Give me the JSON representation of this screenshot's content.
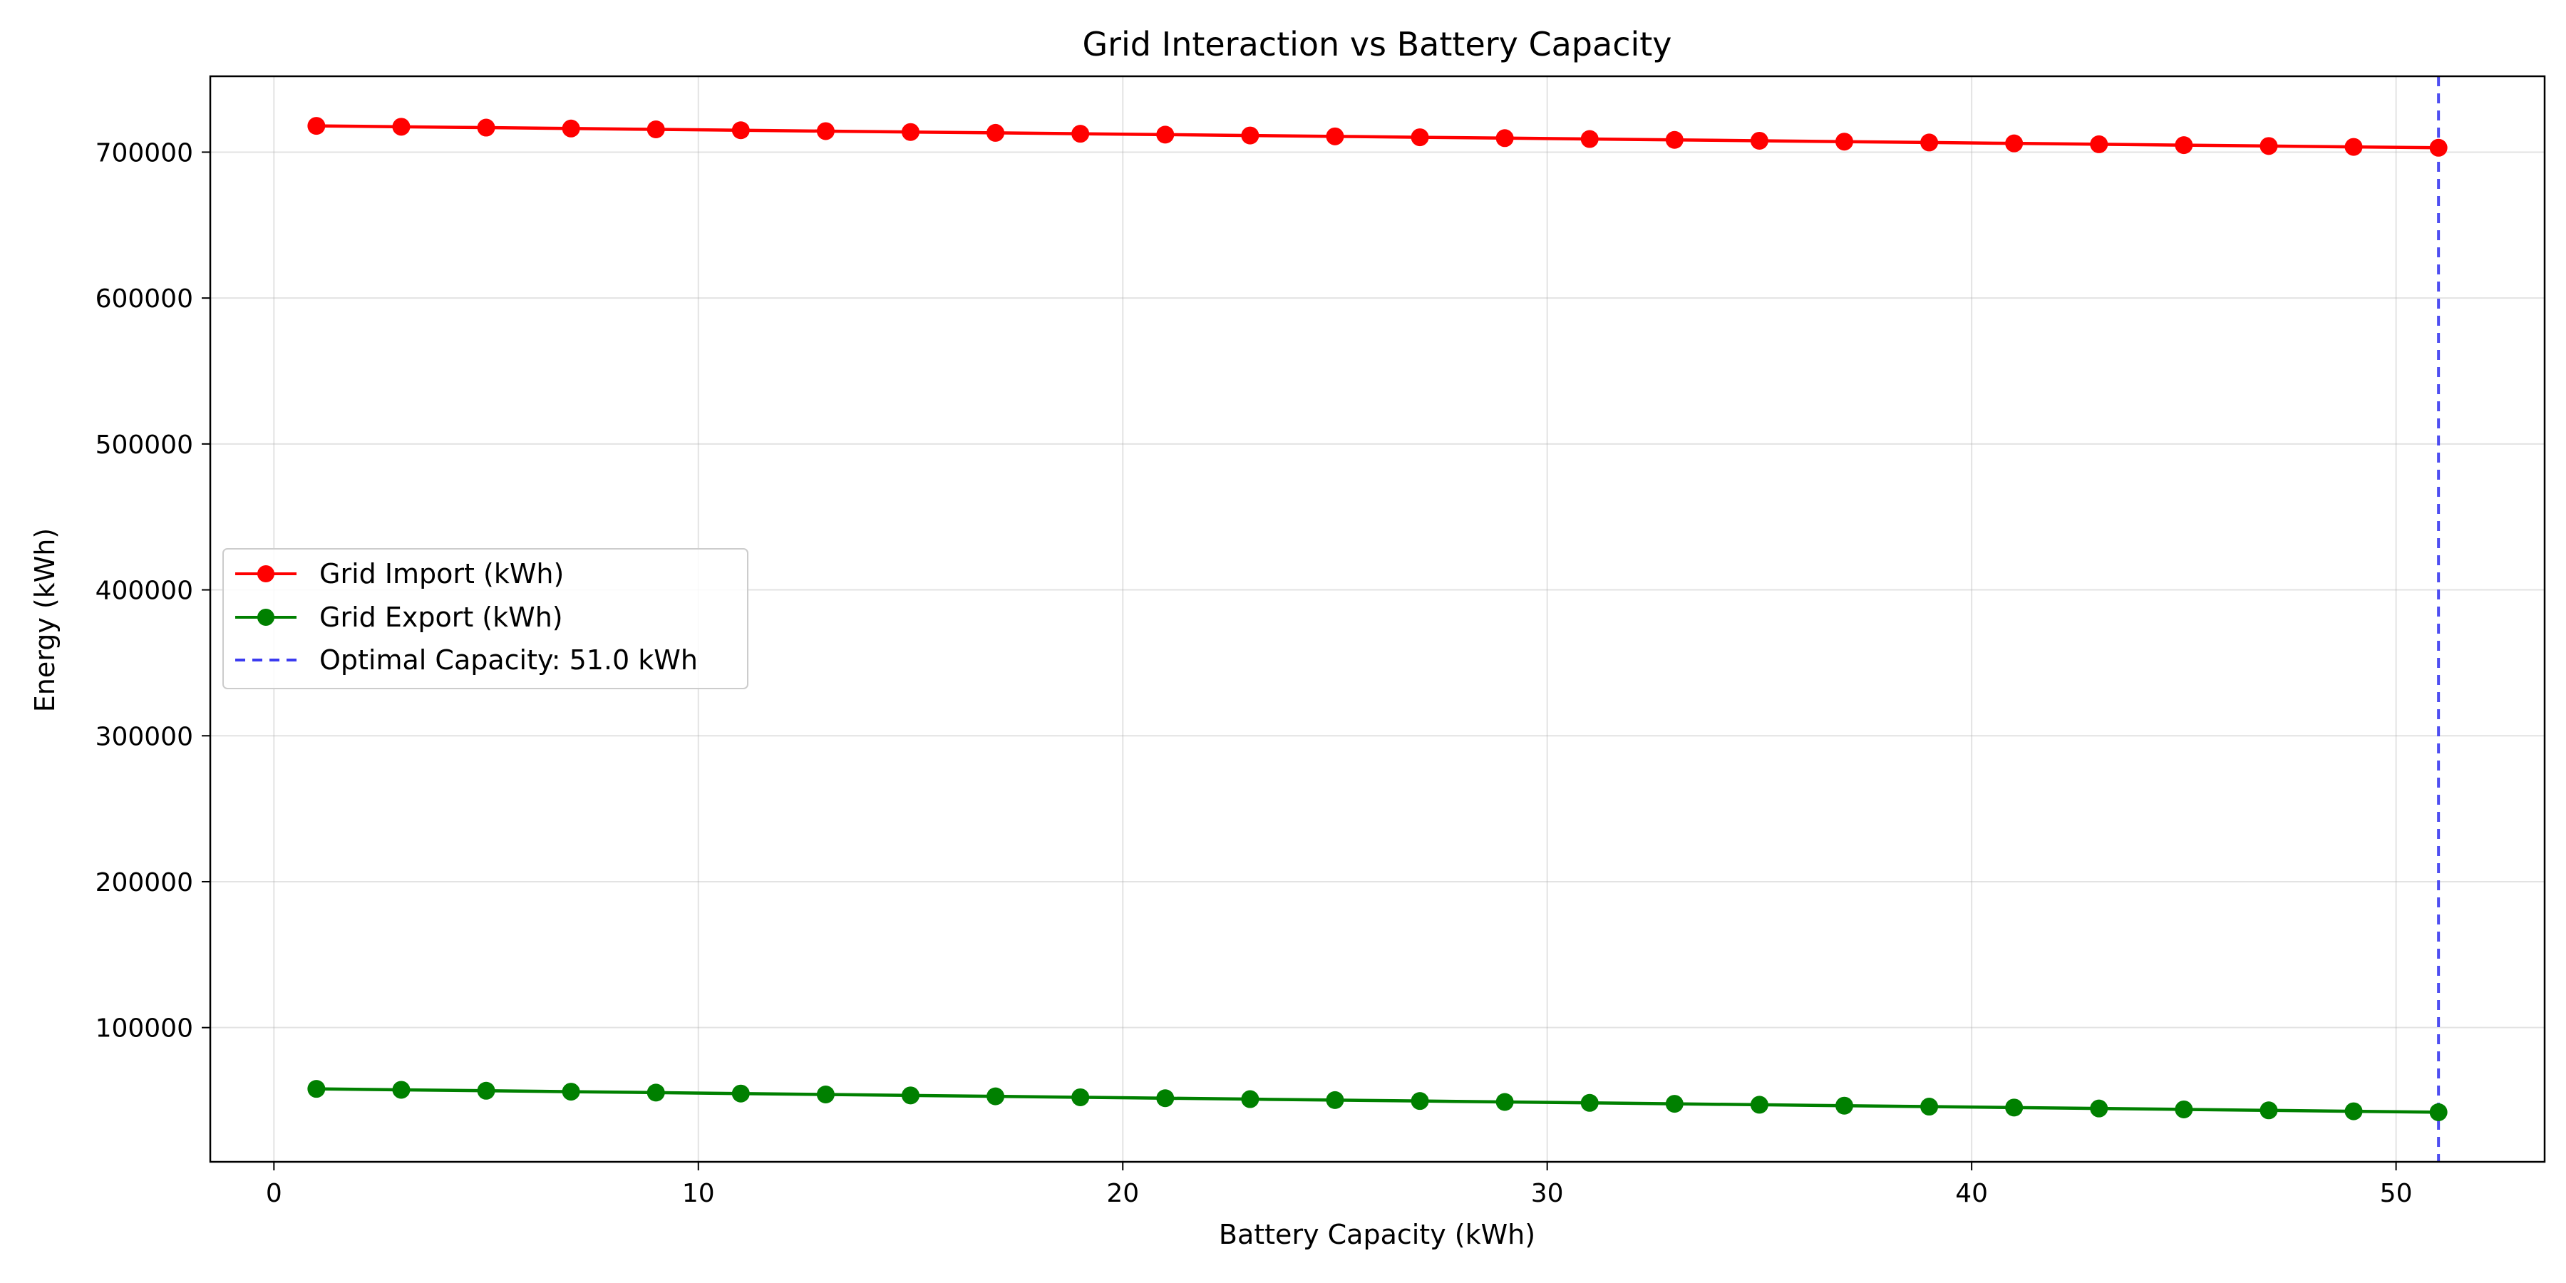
{
  "chart_data": {
    "type": "line",
    "title": "Grid Interaction vs Battery Capacity",
    "xlabel": "Battery Capacity (kWh)",
    "ylabel": "Energy (kWh)",
    "xlim": [
      -1.5,
      53.5
    ],
    "ylim": [
      8000,
      752000
    ],
    "xticks": [
      0,
      10,
      20,
      30,
      40,
      50
    ],
    "yticks": [
      100000,
      200000,
      300000,
      400000,
      500000,
      600000,
      700000
    ],
    "grid": true,
    "legend_position": "center-left",
    "x": [
      1,
      3,
      5,
      7,
      9,
      11,
      13,
      15,
      17,
      19,
      21,
      23,
      25,
      27,
      29,
      31,
      33,
      35,
      37,
      39,
      41,
      43,
      45,
      47,
      49,
      51
    ],
    "series": [
      {
        "name": "Grid Import (kWh)",
        "color": "#ff0000",
        "values": [
          718000,
          717400,
          716800,
          716200,
          715600,
          715000,
          714400,
          713800,
          713200,
          712600,
          712000,
          711400,
          710800,
          710200,
          709600,
          709000,
          708400,
          707800,
          707200,
          706600,
          706000,
          705400,
          704800,
          704200,
          703600,
          703000
        ]
      },
      {
        "name": "Grid Export (kWh)",
        "color": "#008000",
        "values": [
          58000,
          57360,
          56720,
          56080,
          55440,
          54800,
          54160,
          53520,
          52880,
          52240,
          51600,
          50960,
          50320,
          49680,
          49040,
          48400,
          47760,
          47120,
          46480,
          45840,
          45200,
          44560,
          43920,
          43280,
          42640,
          42000
        ]
      }
    ],
    "vline": {
      "x": 51,
      "label": "Optimal Capacity: 51.0 kWh",
      "color": "#3b3bf0"
    }
  }
}
